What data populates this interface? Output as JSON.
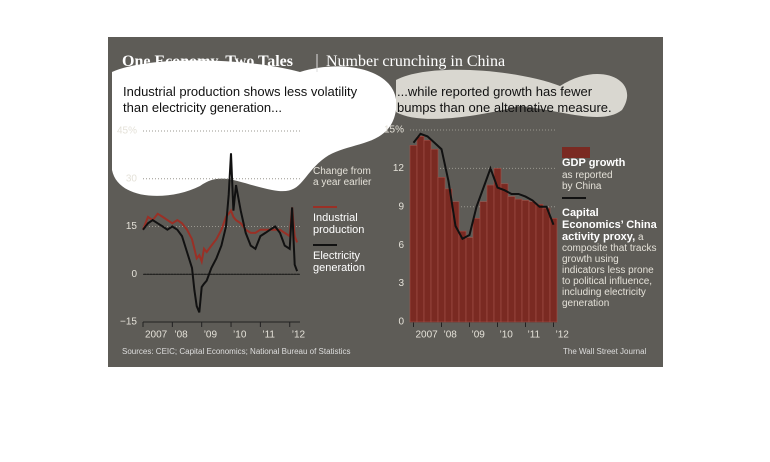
{
  "header": {
    "title": "One Economy, Two Tales",
    "subtitle": "Number crunching in China"
  },
  "footer": {
    "source": "Sources: CEIC; Capital Economics; National Bureau of Statistics",
    "credit": "The Wall Street Journal"
  },
  "chart_data": [
    {
      "type": "line",
      "title": "Industrial production shows less volatility than electricity generation...",
      "annotation": "Change from a year earlier",
      "x": [
        2007.0,
        2007.17,
        2007.33,
        2007.5,
        2007.67,
        2007.83,
        2008.0,
        2008.17,
        2008.33,
        2008.5,
        2008.67,
        2008.75,
        2008.83,
        2008.92,
        2009.0,
        2009.08,
        2009.17,
        2009.33,
        2009.5,
        2009.67,
        2009.83,
        2009.92,
        2010.0,
        2010.08,
        2010.17,
        2010.33,
        2010.5,
        2010.67,
        2010.83,
        2011.0,
        2011.17,
        2011.33,
        2011.5,
        2011.67,
        2011.83,
        2012.0,
        2012.08,
        2012.17,
        2012.25
      ],
      "series": [
        {
          "name": "Industrial production",
          "color": "#9a3026",
          "values": [
            14,
            18,
            17,
            19,
            18,
            17,
            16,
            17,
            16,
            14,
            11,
            8,
            5,
            6,
            4,
            8,
            7,
            9,
            11,
            14,
            18,
            19,
            20,
            18,
            17,
            16,
            14,
            13,
            13,
            14,
            14,
            14,
            14,
            14,
            13,
            12,
            21,
            12,
            10
          ]
        },
        {
          "name": "Electricity generation",
          "color": "#111111",
          "values": [
            14,
            16,
            17,
            16,
            15,
            14,
            15,
            14,
            12,
            7,
            2,
            -5,
            -10,
            -12,
            -4,
            -3,
            -2,
            2,
            5,
            9,
            15,
            25,
            38,
            20,
            28,
            20,
            13,
            9,
            8,
            12,
            13,
            14,
            15,
            13,
            9,
            8,
            21,
            3,
            1
          ]
        }
      ],
      "xlim": [
        2007,
        2012.35
      ],
      "xticks": [
        {
          "value": 2007,
          "label": "2007"
        },
        {
          "value": 2008,
          "label": "’08"
        },
        {
          "value": 2009,
          "label": "’09"
        },
        {
          "value": 2010,
          "label": "’10"
        },
        {
          "value": 2011,
          "label": "’11"
        },
        {
          "value": 2012,
          "label": "’12"
        }
      ],
      "ylim": [
        -15,
        45
      ],
      "yticks": [
        {
          "value": -15,
          "label": "−15"
        },
        0,
        15,
        30,
        {
          "value": 45,
          "label": "45%"
        }
      ],
      "grid": true
    },
    {
      "type": "bar",
      "title": "...while reported growth has fewer bumps than one alternative measure.",
      "x": [
        2007,
        2007.25,
        2007.5,
        2007.75,
        2008,
        2008.25,
        2008.5,
        2008.75,
        2009,
        2009.25,
        2009.5,
        2009.75,
        2010,
        2010.25,
        2010.5,
        2010.75,
        2011,
        2011.25,
        2011.5,
        2011.75,
        2012
      ],
      "series": [
        {
          "name": "GDP growth",
          "description": "as reported by China",
          "type": "bar",
          "color": "#7a2a22",
          "values": [
            13.8,
            14.5,
            14.2,
            13.5,
            11.3,
            10.4,
            9.4,
            7.1,
            6.6,
            8.1,
            9.4,
            10.7,
            12.0,
            10.8,
            9.8,
            9.6,
            9.5,
            9.4,
            9.2,
            8.9,
            8.1
          ]
        },
        {
          "name": "Capital Economics’ China activity proxy,",
          "description": "a composite that tracks growth using indicators less prone to political influence, including electricity generation",
          "type": "line",
          "color": "#111111",
          "values": [
            14.0,
            14.7,
            14.5,
            14.0,
            13.5,
            11.0,
            7.5,
            6.5,
            6.8,
            9.0,
            10.5,
            12.0,
            10.5,
            10.3,
            10.0,
            10.0,
            9.8,
            9.5,
            9.0,
            9.0,
            7.6
          ]
        }
      ],
      "xlim": [
        2006.875,
        2012.125
      ],
      "xticks": [
        {
          "value": 2007,
          "label": "2007"
        },
        {
          "value": 2008,
          "label": "’08"
        },
        {
          "value": 2009,
          "label": "’09"
        },
        {
          "value": 2010,
          "label": "’10"
        },
        {
          "value": 2011,
          "label": "’11"
        },
        {
          "value": 2012,
          "label": "’12"
        }
      ],
      "ylim": [
        0,
        15
      ],
      "yticks": [
        0,
        3,
        6,
        9,
        12,
        {
          "value": 15,
          "label": "15%"
        }
      ],
      "grid": true
    }
  ]
}
